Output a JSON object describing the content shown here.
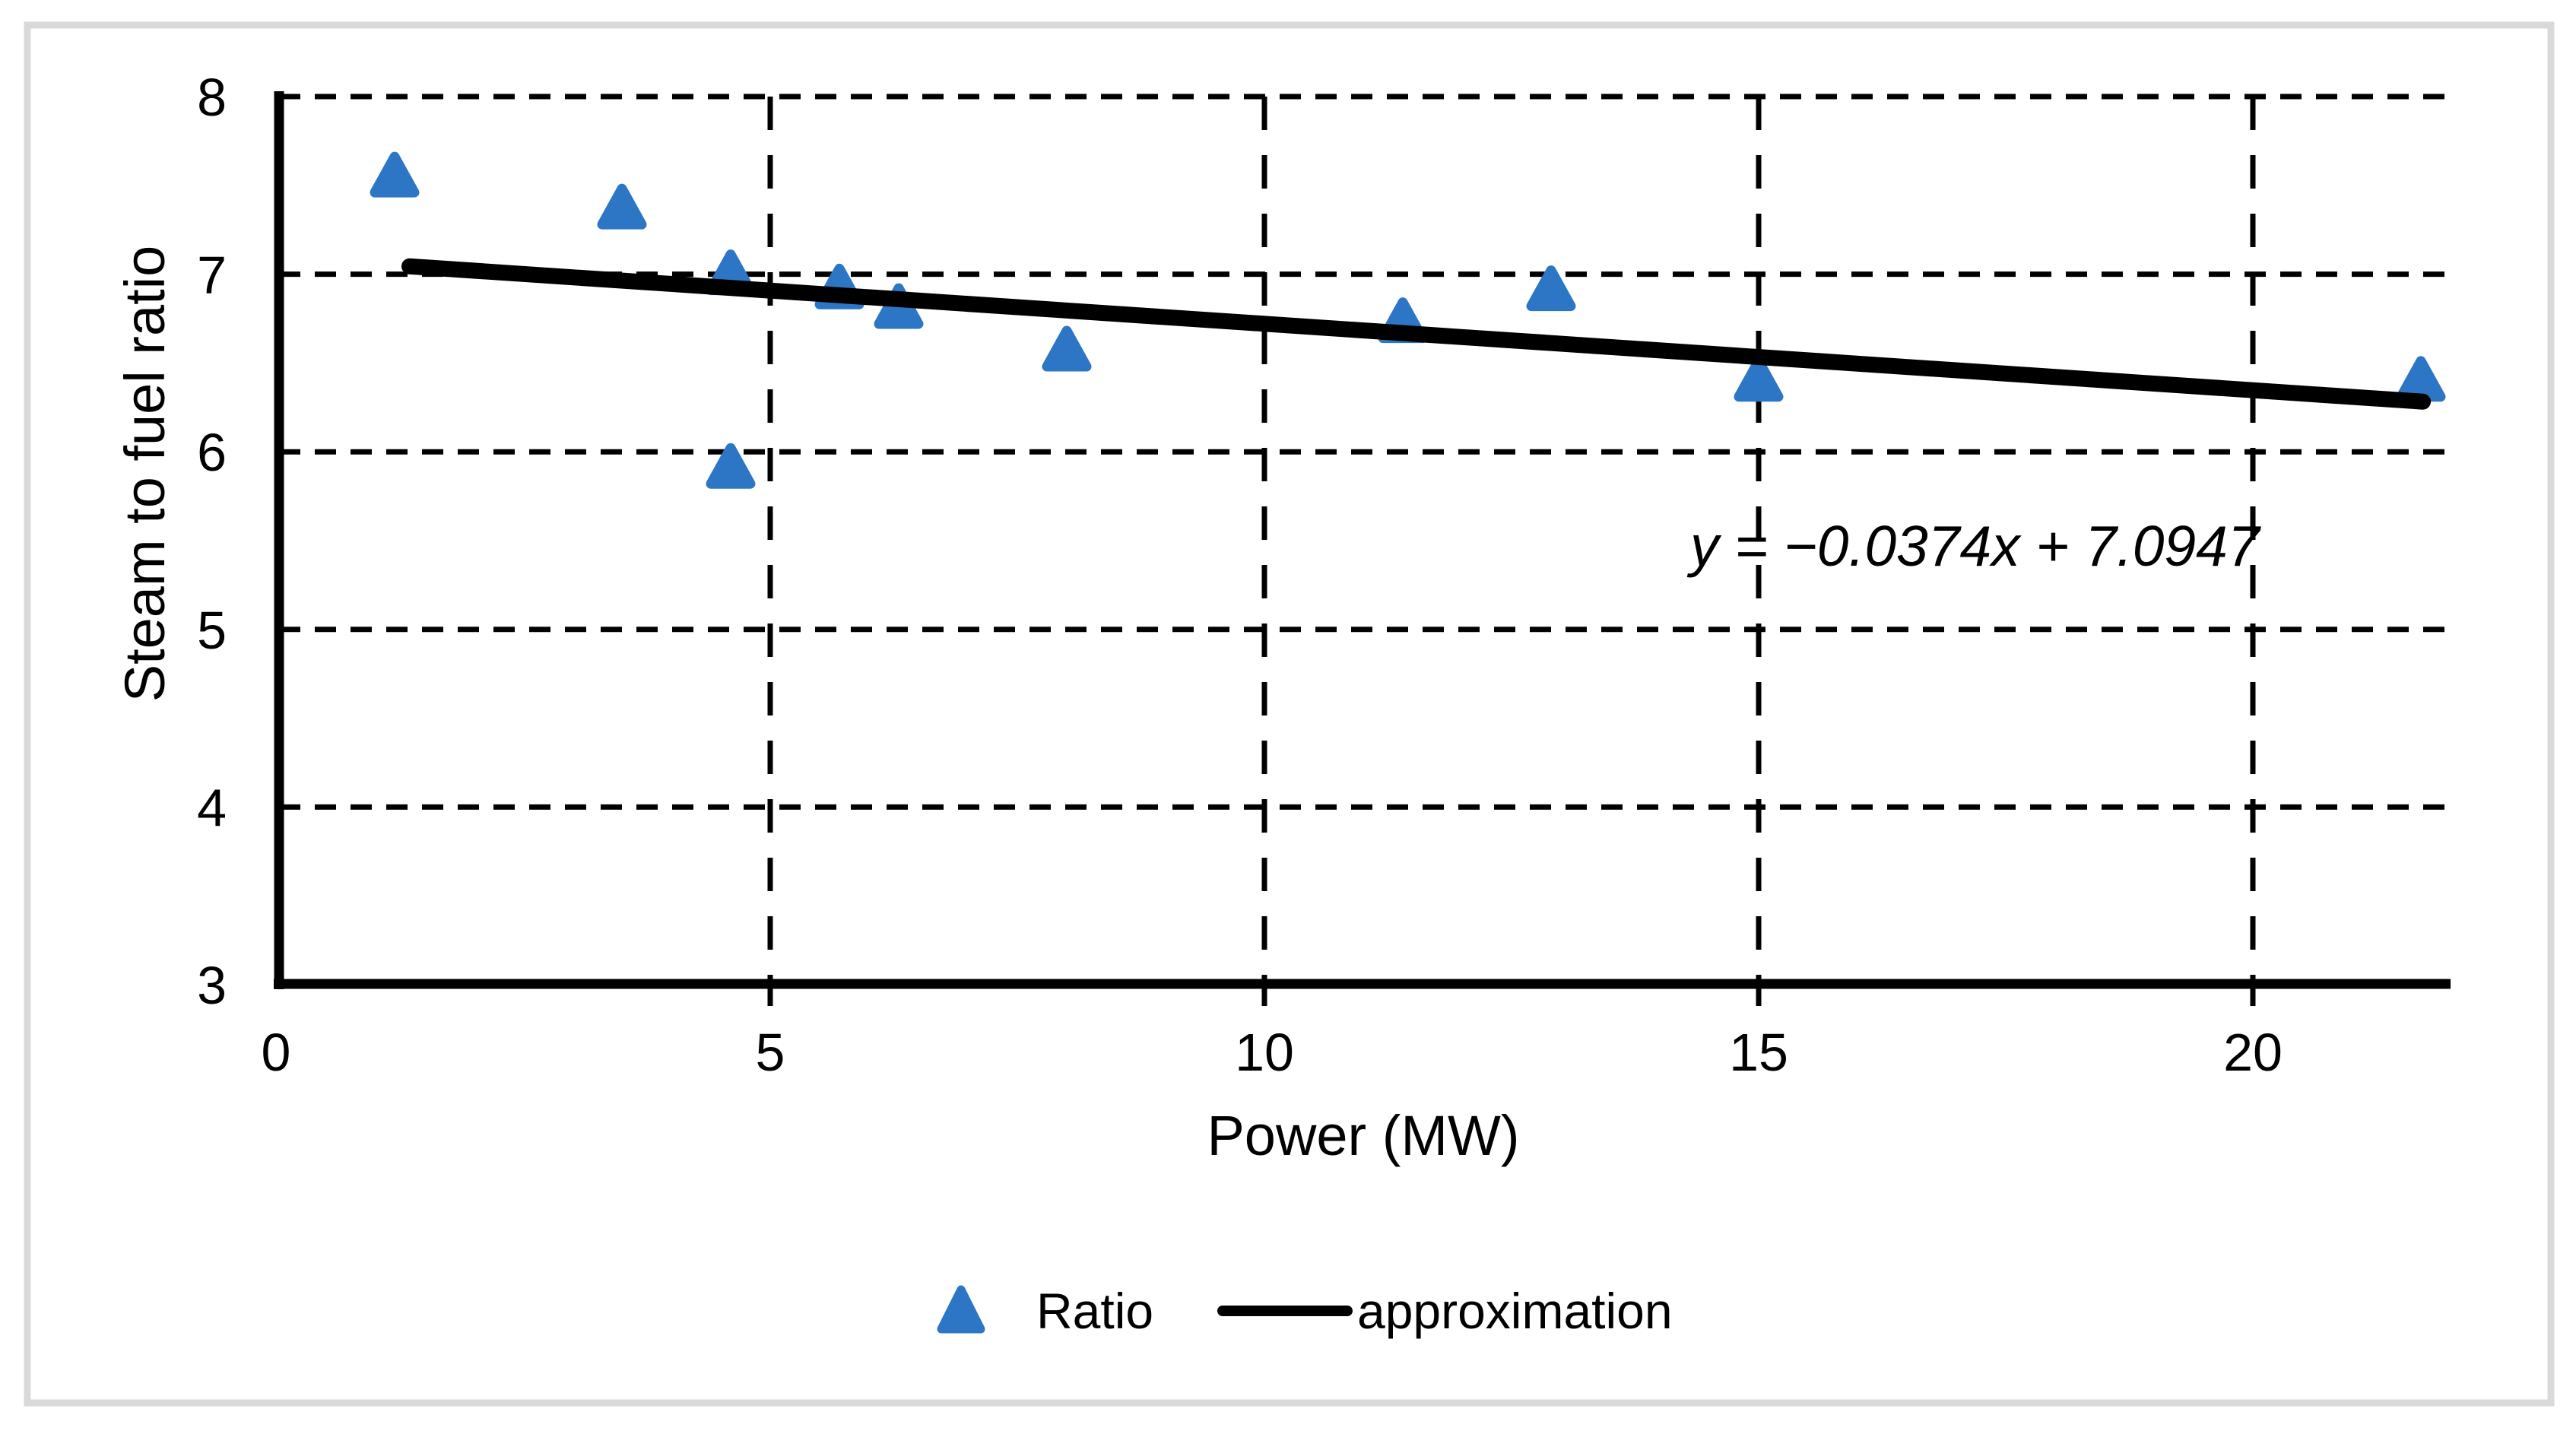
{
  "chart_data": {
    "type": "scatter",
    "title": "",
    "xlabel": "Power (MW)",
    "ylabel": "Steam to fuel ratio",
    "xlim": [
      0,
      22
    ],
    "ylim": [
      3,
      8
    ],
    "x_ticks": [
      0,
      5,
      10,
      15,
      20
    ],
    "y_ticks": [
      3,
      4,
      5,
      6,
      7,
      8
    ],
    "grid": "dashed-black",
    "series": [
      {
        "name": "Ratio",
        "type": "scatter",
        "marker": "triangle",
        "color": "#2D76C5",
        "points": [
          [
            1.2,
            7.55
          ],
          [
            3.5,
            7.37
          ],
          [
            4.6,
            7.0
          ],
          [
            4.6,
            5.91
          ],
          [
            5.7,
            6.92
          ],
          [
            6.3,
            6.81
          ],
          [
            8.0,
            6.57
          ],
          [
            11.4,
            6.73
          ],
          [
            12.9,
            6.91
          ],
          [
            15.0,
            6.4
          ],
          [
            21.7,
            6.4
          ]
        ]
      },
      {
        "name": "approximation",
        "type": "trendline",
        "color": "#000000",
        "slope": -0.0374,
        "intercept": 7.0947,
        "x_start": 1.35,
        "x_end": 21.72
      }
    ],
    "equation": "y = −0.0374x + 7.0947",
    "legend": {
      "position": "bottom",
      "items": [
        {
          "label": "Ratio",
          "marker": "triangle"
        },
        {
          "label": "approximation",
          "marker": "line"
        }
      ]
    }
  },
  "colors": {
    "marker_blue": "#2D76C5",
    "line_black": "#000000",
    "frame_gray": "#D9D9D9",
    "background": "#FFFFFF"
  }
}
